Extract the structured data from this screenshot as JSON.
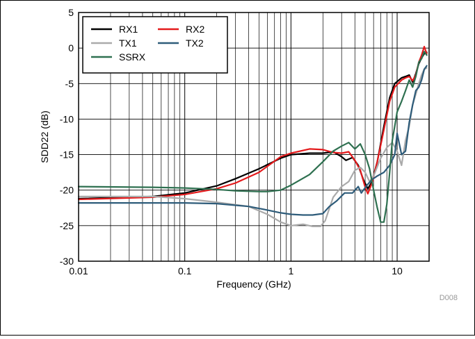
{
  "chart_data": {
    "type": "line",
    "title": "",
    "xlabel": "Frequency (GHz)",
    "ylabel": "SDD22 (dB)",
    "xscale": "log",
    "xlim": [
      0.01,
      20
    ],
    "ylim": [
      -30,
      5
    ],
    "xticks": [
      0.01,
      0.1,
      1,
      10
    ],
    "xtick_labels": [
      "0.01",
      "0.1",
      "1",
      "10"
    ],
    "yticks": [
      5,
      0,
      -5,
      -10,
      -15,
      -20,
      -25,
      -30
    ],
    "ytick_labels": [
      "5",
      "0",
      "-5",
      "-10",
      "-15",
      "-20",
      "-25",
      "-30"
    ],
    "grid": true,
    "legend_position": "top-left",
    "annotation": "D008",
    "series": [
      {
        "name": "RX1",
        "color": "#000000",
        "points": [
          [
            0.01,
            -21.2
          ],
          [
            0.05,
            -20.9
          ],
          [
            0.1,
            -20.4
          ],
          [
            0.2,
            -19.4
          ],
          [
            0.3,
            -18.4
          ],
          [
            0.5,
            -17.0
          ],
          [
            0.8,
            -15.5
          ],
          [
            1.0,
            -15.0
          ],
          [
            1.5,
            -14.8
          ],
          [
            2.0,
            -14.8
          ],
          [
            2.5,
            -14.6
          ],
          [
            3.0,
            -15.3
          ],
          [
            3.3,
            -15.8
          ],
          [
            3.8,
            -15.4
          ],
          [
            4.3,
            -16.5
          ],
          [
            4.8,
            -18.5
          ],
          [
            5.3,
            -19.8
          ],
          [
            5.8,
            -18.8
          ],
          [
            6.5,
            -16.0
          ],
          [
            7.5,
            -11.0
          ],
          [
            8.5,
            -7.0
          ],
          [
            9.5,
            -5.0
          ],
          [
            11,
            -4.2
          ],
          [
            12,
            -4.0
          ],
          [
            13,
            -3.8
          ],
          [
            14,
            -4.8
          ],
          [
            15,
            -3.6
          ],
          [
            16,
            -2.2
          ],
          [
            17,
            -1.4
          ],
          [
            18,
            -0.8
          ],
          [
            19,
            -0.6
          ]
        ]
      },
      {
        "name": "RX2",
        "color": "#e41a1c",
        "points": [
          [
            0.01,
            -21.3
          ],
          [
            0.05,
            -21.0
          ],
          [
            0.1,
            -20.6
          ],
          [
            0.2,
            -19.8
          ],
          [
            0.3,
            -19.0
          ],
          [
            0.5,
            -17.5
          ],
          [
            0.8,
            -15.3
          ],
          [
            1.0,
            -14.8
          ],
          [
            1.5,
            -14.2
          ],
          [
            2.0,
            -14.3
          ],
          [
            2.5,
            -14.7
          ],
          [
            3.0,
            -14.8
          ],
          [
            3.5,
            -14.6
          ],
          [
            4.0,
            -15.8
          ],
          [
            4.5,
            -17.2
          ],
          [
            5.0,
            -19.6
          ],
          [
            5.3,
            -20.5
          ],
          [
            5.8,
            -19.0
          ],
          [
            6.5,
            -16.0
          ],
          [
            7.5,
            -11.5
          ],
          [
            8.5,
            -7.5
          ],
          [
            9.5,
            -5.5
          ],
          [
            11,
            -4.5
          ],
          [
            12,
            -4.2
          ],
          [
            13,
            -4.0
          ],
          [
            14,
            -4.6
          ],
          [
            15,
            -3.8
          ],
          [
            16,
            -2.0
          ],
          [
            17,
            -1.0
          ],
          [
            18,
            0.2
          ],
          [
            19,
            -0.8
          ]
        ]
      },
      {
        "name": "TX1",
        "color": "#aaaaaa",
        "points": [
          [
            0.01,
            -20.9
          ],
          [
            0.05,
            -20.9
          ],
          [
            0.1,
            -21.2
          ],
          [
            0.2,
            -21.7
          ],
          [
            0.4,
            -22.3
          ],
          [
            0.6,
            -23.4
          ],
          [
            0.8,
            -24.5
          ],
          [
            1.0,
            -25.0
          ],
          [
            1.3,
            -24.8
          ],
          [
            1.6,
            -25.1
          ],
          [
            1.9,
            -25.1
          ],
          [
            2.1,
            -24.3
          ],
          [
            2.5,
            -21.0
          ],
          [
            3.0,
            -19.5
          ],
          [
            3.5,
            -18.8
          ],
          [
            4.0,
            -17.2
          ],
          [
            4.5,
            -16.8
          ],
          [
            5.0,
            -17.5
          ],
          [
            5.5,
            -18.8
          ],
          [
            6.0,
            -18.0
          ],
          [
            7.0,
            -15.5
          ],
          [
            8.0,
            -14.0
          ],
          [
            9.0,
            -13.3
          ],
          [
            10,
            -14.5
          ],
          [
            11,
            -16.5
          ],
          [
            12,
            -13.0
          ],
          [
            13,
            -11.0
          ],
          [
            14,
            -8.0
          ],
          [
            15,
            -6.5
          ],
          [
            16,
            -5.0
          ],
          [
            17,
            -3.8
          ],
          [
            18,
            -3.0
          ],
          [
            19,
            -2.8
          ]
        ]
      },
      {
        "name": "TX2",
        "color": "#2e5c7a",
        "points": [
          [
            0.01,
            -21.8
          ],
          [
            0.05,
            -21.8
          ],
          [
            0.1,
            -21.8
          ],
          [
            0.2,
            -21.9
          ],
          [
            0.4,
            -22.3
          ],
          [
            0.6,
            -22.8
          ],
          [
            0.8,
            -23.2
          ],
          [
            1.0,
            -23.4
          ],
          [
            1.3,
            -23.5
          ],
          [
            1.6,
            -23.5
          ],
          [
            2.0,
            -23.3
          ],
          [
            2.3,
            -22.3
          ],
          [
            2.7,
            -21.5
          ],
          [
            3.2,
            -20.4
          ],
          [
            3.8,
            -20.4
          ],
          [
            4.3,
            -19.5
          ],
          [
            4.6,
            -20.4
          ],
          [
            5.2,
            -19.3
          ],
          [
            5.8,
            -18.5
          ],
          [
            6.5,
            -18.0
          ],
          [
            7.5,
            -17.5
          ],
          [
            8.5,
            -16.5
          ],
          [
            9.5,
            -15.0
          ],
          [
            10,
            -12.0
          ],
          [
            11,
            -15.0
          ],
          [
            12,
            -14.5
          ],
          [
            13,
            -10.5
          ],
          [
            14,
            -8.0
          ],
          [
            15,
            -6.0
          ],
          [
            16,
            -5.5
          ],
          [
            17,
            -4.5
          ],
          [
            18,
            -3.0
          ],
          [
            19,
            -2.5
          ]
        ]
      },
      {
        "name": "SSRX",
        "color": "#2e7050",
        "points": [
          [
            0.01,
            -19.5
          ],
          [
            0.05,
            -19.6
          ],
          [
            0.1,
            -19.7
          ],
          [
            0.2,
            -19.9
          ],
          [
            0.3,
            -20.1
          ],
          [
            0.5,
            -20.2
          ],
          [
            0.6,
            -20.2
          ],
          [
            0.8,
            -20.0
          ],
          [
            1.0,
            -19.3
          ],
          [
            1.5,
            -17.8
          ],
          [
            2.0,
            -16.0
          ],
          [
            2.5,
            -14.5
          ],
          [
            3.0,
            -13.8
          ],
          [
            3.5,
            -13.3
          ],
          [
            4.0,
            -14.2
          ],
          [
            4.5,
            -13.5
          ],
          [
            5.0,
            -15.0
          ],
          [
            5.5,
            -17.0
          ],
          [
            6.0,
            -20.0
          ],
          [
            6.5,
            -22.5
          ],
          [
            7.0,
            -24.5
          ],
          [
            7.5,
            -24.5
          ],
          [
            8.0,
            -22.0
          ],
          [
            8.5,
            -17.5
          ],
          [
            9.0,
            -13.0
          ],
          [
            9.5,
            -11.0
          ],
          [
            10,
            -9.0
          ],
          [
            11,
            -7.5
          ],
          [
            12,
            -6.0
          ],
          [
            13,
            -4.5
          ],
          [
            14,
            -5.5
          ],
          [
            15,
            -4.0
          ],
          [
            16,
            -2.0
          ],
          [
            17,
            -1.5
          ],
          [
            18,
            -0.5
          ],
          [
            19,
            -1.0
          ]
        ]
      }
    ]
  }
}
